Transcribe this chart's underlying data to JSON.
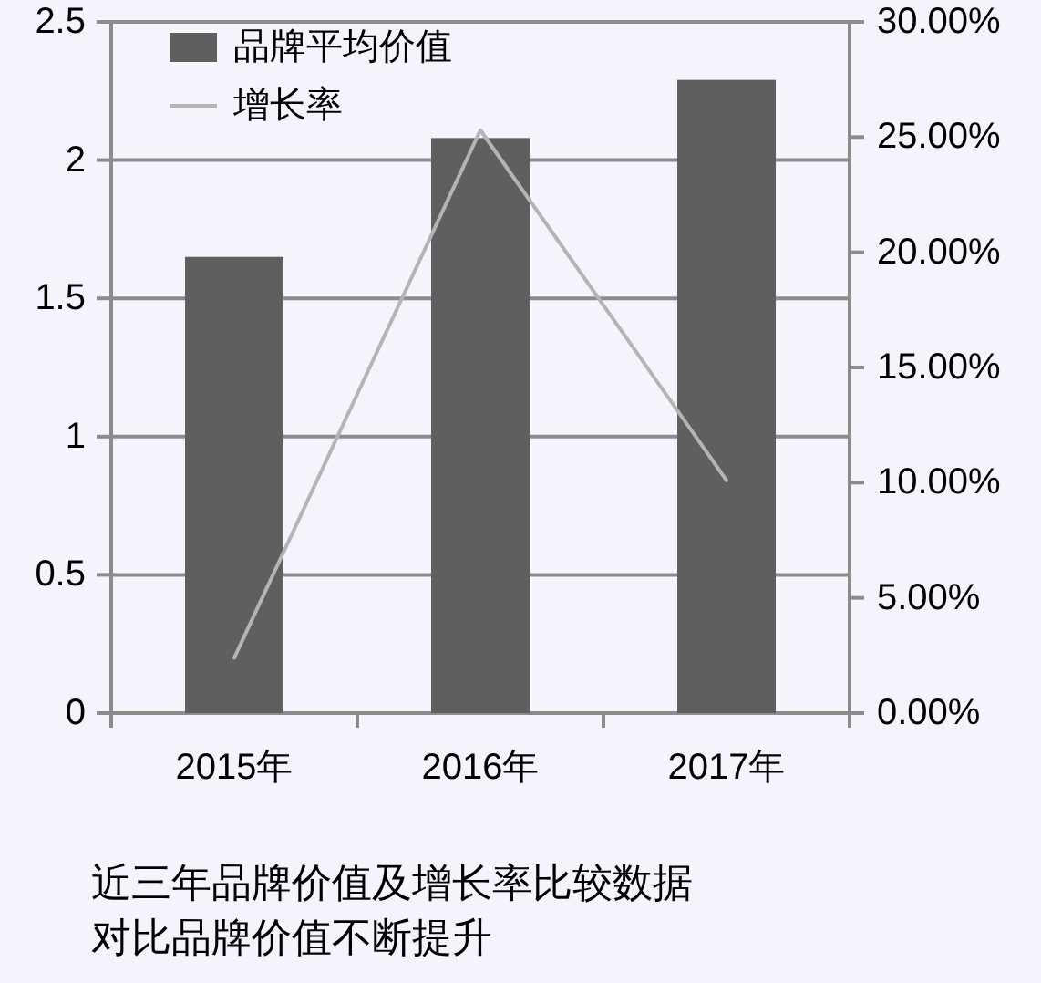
{
  "chart_data": {
    "type": "bar",
    "categories": [
      "2015年",
      "2016年",
      "2017年"
    ],
    "series": [
      {
        "name": "品牌平均价值",
        "color": "#5f5f5f",
        "values": [
          1.65,
          2.08,
          2.29
        ]
      },
      {
        "name": "增长率",
        "type": "line",
        "axis": "y2",
        "color": "#b4b4b4",
        "values": [
          2.4,
          25.3,
          10.1
        ]
      }
    ],
    "ylim": [
      0,
      2.5
    ],
    "yticks": [
      0,
      0.5,
      1,
      1.5,
      2,
      2.5
    ],
    "y2lim": [
      0,
      30
    ],
    "y2ticks": [
      {
        "value": 0,
        "label": "0.00%"
      },
      {
        "value": 5,
        "label": "5.00%"
      },
      {
        "value": 10,
        "label": "10.00%"
      },
      {
        "value": 15,
        "label": "15.00%"
      },
      {
        "value": 20,
        "label": "20.00%"
      },
      {
        "value": 25,
        "label": "25.00%"
      },
      {
        "value": 30,
        "label": "30.00%"
      }
    ],
    "grid": "y",
    "legend": "top left",
    "marker": "none",
    "annotations": [
      "近三年品牌价值及增长率比较数据",
      "对比品牌价值不断提升"
    ]
  }
}
